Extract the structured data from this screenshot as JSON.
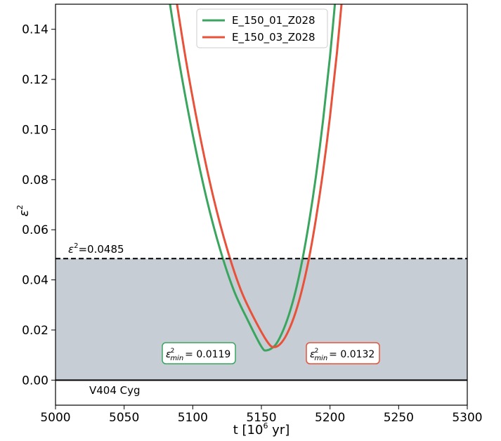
{
  "chart_data": {
    "type": "line",
    "title": "",
    "xlabel": "t [10",
    "xlabel_sup": "6",
    "xlabel_tail": " yr]",
    "ylabel": "ε",
    "ylabel_sup": "2",
    "xlim": [
      5000,
      5300
    ],
    "ylim": [
      -0.01,
      0.15
    ],
    "xticks": [
      "5000",
      "5050",
      "5100",
      "5150",
      "5200",
      "5250",
      "5300"
    ],
    "yticks": [
      "0.00",
      "0.02",
      "0.04",
      "0.06",
      "0.08",
      "0.10",
      "0.12",
      "0.14"
    ],
    "grid": false,
    "legend_position": "top-center",
    "threshold": {
      "value": 0.0485,
      "label_prefix": "ε",
      "label_sup": "2",
      "label_value": "=0.0485"
    },
    "shaded_region": [
      0,
      0.0485
    ],
    "star_label": "V404 Cyg",
    "series": [
      {
        "name": "E_150_01_Z028",
        "color": "#3aa55e",
        "x": [
          5080,
          5090,
          5100,
          5110,
          5120,
          5130,
          5140,
          5150,
          5154,
          5160,
          5165,
          5170,
          5175,
          5180,
          5185,
          5190,
          5195,
          5200,
          5205
        ],
        "y": [
          0.1622,
          0.1273,
          0.0979,
          0.0726,
          0.052,
          0.0357,
          0.024,
          0.0134,
          0.0119,
          0.0139,
          0.0188,
          0.026,
          0.0357,
          0.0484,
          0.064,
          0.0824,
          0.104,
          0.1292,
          0.1588
        ],
        "min_label": "= 0.0119"
      },
      {
        "name": "E_150_03_Z028",
        "color": "#e8513a",
        "x": [
          5085,
          5095,
          5105,
          5115,
          5125,
          5135,
          5145,
          5155,
          5160,
          5165,
          5170,
          5175,
          5180,
          5185,
          5190,
          5195,
          5200,
          5205,
          5210
        ],
        "y": [
          0.1625,
          0.1278,
          0.0982,
          0.073,
          0.0524,
          0.036,
          0.0243,
          0.0148,
          0.0132,
          0.0152,
          0.02,
          0.0272,
          0.037,
          0.0495,
          0.0652,
          0.0836,
          0.1052,
          0.1304,
          0.1598
        ],
        "min_label": "= 0.0132"
      }
    ],
    "min_prefix": "ε",
    "min_sup": "2",
    "min_sub": "min"
  }
}
